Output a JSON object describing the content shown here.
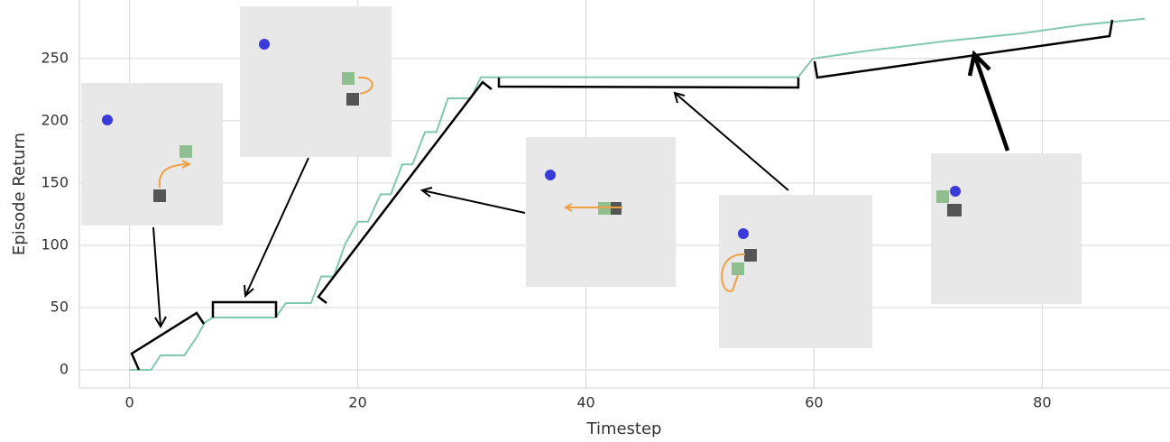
{
  "chart_data": {
    "type": "line",
    "x_label": "Timestep",
    "y_label": "Episode Return",
    "xlim": [
      -4.4,
      91.2
    ],
    "ylim": [
      -14.5,
      297
    ],
    "xticks": [
      0,
      20,
      40,
      60,
      80
    ],
    "yticks": [
      0,
      50,
      100,
      150,
      200,
      250
    ],
    "grid": true,
    "series": [
      {
        "color": "#82c8ac",
        "x": [
          0,
          1.9,
          2.7,
          4.8,
          5.8,
          6.6,
          7.3,
          12.8,
          13.7,
          15.9,
          16.8,
          17.9,
          18.9,
          20,
          20.9,
          22,
          22.9,
          23.9,
          24.8,
          25.9,
          26.9,
          27.9,
          29.9,
          30.8,
          58.6,
          59.9,
          64.5,
          71.6,
          78,
          83.5,
          89
        ],
        "values": [
          0,
          0,
          11.6,
          11.6,
          25,
          38,
          42,
          42,
          53.6,
          53.6,
          75,
          75,
          101,
          119,
          119,
          141,
          141,
          165,
          165,
          191,
          191,
          218,
          218,
          235,
          235,
          250,
          256,
          264,
          270,
          277,
          282
        ]
      }
    ]
  }
}
